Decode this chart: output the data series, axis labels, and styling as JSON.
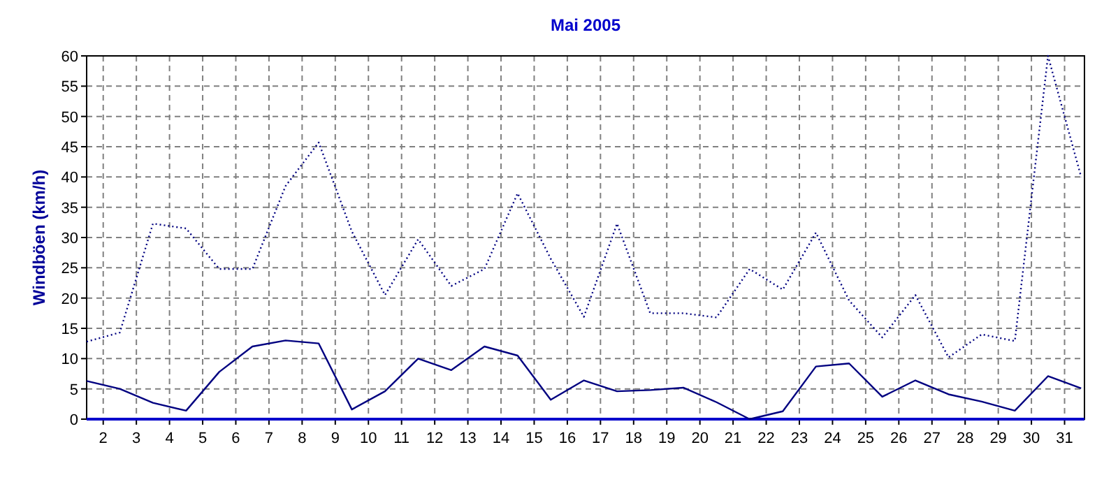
{
  "chart_data": {
    "type": "line",
    "title": "Mai 2005",
    "ylabel": "Windböen  (km/h)",
    "xlim": [
      1.5,
      31.6
    ],
    "xticks": [
      2,
      3,
      4,
      5,
      6,
      7,
      8,
      9,
      10,
      11,
      12,
      13,
      14,
      15,
      16,
      17,
      18,
      19,
      20,
      21,
      22,
      23,
      24,
      25,
      26,
      27,
      28,
      29,
      30,
      31
    ],
    "ylim": [
      0,
      60
    ],
    "yticks": [
      0,
      5,
      10,
      15,
      20,
      25,
      30,
      35,
      40,
      45,
      50,
      55,
      60
    ],
    "grid": true,
    "x": [
      1.5,
      2.5,
      3.5,
      4.5,
      5.5,
      6.5,
      7.5,
      8.5,
      9.5,
      10.5,
      11.5,
      12.5,
      13.5,
      14.5,
      15.5,
      16.5,
      17.5,
      18.5,
      19.5,
      20.5,
      21.5,
      22.5,
      23.5,
      24.5,
      25.5,
      26.5,
      27.5,
      28.5,
      29.5,
      30.5,
      31.5
    ],
    "series": [
      {
        "color": "#000080",
        "line_style": "dotted",
        "values": [
          12.8,
          14.3,
          32.3,
          31.5,
          24.8,
          24.8,
          38.5,
          45.7,
          31,
          20.5,
          29.7,
          22,
          24.8,
          37.3,
          26.5,
          16.9,
          32.3,
          17.5,
          17.5,
          16.8,
          24.8,
          21.4,
          30.8,
          19.6,
          13.5,
          20.5,
          10.2,
          14,
          12.9,
          60,
          40
        ]
      },
      {
        "color": "#000080",
        "line_style": "solid",
        "values": [
          6.3,
          5,
          2.7,
          1.4,
          7.8,
          12,
          13,
          12.5,
          1.6,
          4.6,
          10,
          8.1,
          12,
          10.5,
          3.2,
          6.4,
          4.6,
          4.8,
          5.2,
          2.8,
          0,
          1.3,
          8.7,
          9.2,
          3.7,
          6.4,
          4.1,
          2.9,
          1.4,
          7.1,
          5.1
        ]
      }
    ]
  }
}
